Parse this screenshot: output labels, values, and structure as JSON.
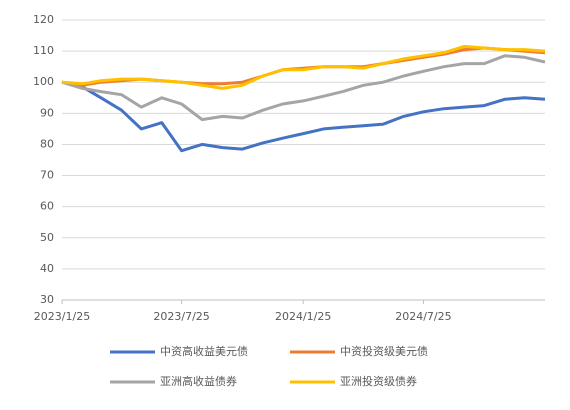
{
  "chart_data": {
    "type": "line",
    "x": [
      "2023/1/25",
      "2023/2/25",
      "2023/3/25",
      "2023/4/25",
      "2023/5/25",
      "2023/6/25",
      "2023/7/25",
      "2023/8/25",
      "2023/9/25",
      "2023/10/25",
      "2023/11/25",
      "2023/12/25",
      "2024/1/25",
      "2024/2/25",
      "2024/3/25",
      "2024/4/25",
      "2024/5/25",
      "2024/6/25",
      "2024/7/25",
      "2024/8/25",
      "2024/9/25",
      "2024/10/25",
      "2024/11/25",
      "2024/12/25",
      "2025/1/25"
    ],
    "series": [
      {
        "name": "中资高收益美元债",
        "color": "#4472c4",
        "values": [
          100,
          98.5,
          95,
          91,
          85,
          87,
          78,
          80,
          79,
          78.5,
          80.5,
          82,
          83.5,
          85,
          85.5,
          86,
          86.5,
          89,
          90.5,
          91.5,
          92,
          92.5,
          94.5,
          95,
          94.5
        ]
      },
      {
        "name": "中资投资级美元债",
        "color": "#ed7d31",
        "values": [
          100,
          99,
          100,
          100.5,
          101,
          100.5,
          100,
          99.5,
          99.5,
          100,
          102,
          104,
          104.5,
          105,
          105,
          105,
          106,
          107,
          108,
          109,
          110.5,
          111,
          110.5,
          110,
          109.5
        ]
      },
      {
        "name": "亚洲高收益债券",
        "color": "#a5a5a5",
        "values": [
          100,
          98,
          97,
          96,
          92,
          95,
          93,
          88,
          89,
          88.5,
          91,
          93,
          94,
          95.5,
          97,
          99,
          100,
          102,
          103.5,
          105,
          106,
          106,
          108.5,
          108,
          106.5
        ]
      },
      {
        "name": "亚洲投资级债券",
        "color": "#ffc000",
        "values": [
          100,
          99.5,
          100.5,
          101,
          101,
          100.5,
          100,
          99,
          98,
          99,
          102,
          104,
          104,
          105,
          105,
          104.5,
          106,
          107.5,
          108.5,
          109.5,
          111.5,
          111,
          110.5,
          110.5,
          110
        ]
      }
    ],
    "ylim": [
      30,
      120
    ],
    "yticks": [
      30,
      40,
      50,
      60,
      70,
      80,
      90,
      100,
      110,
      120
    ],
    "xticks": [
      "2023/1/25",
      "2023/7/25",
      "2024/1/25",
      "2024/7/25"
    ],
    "grid": true
  }
}
